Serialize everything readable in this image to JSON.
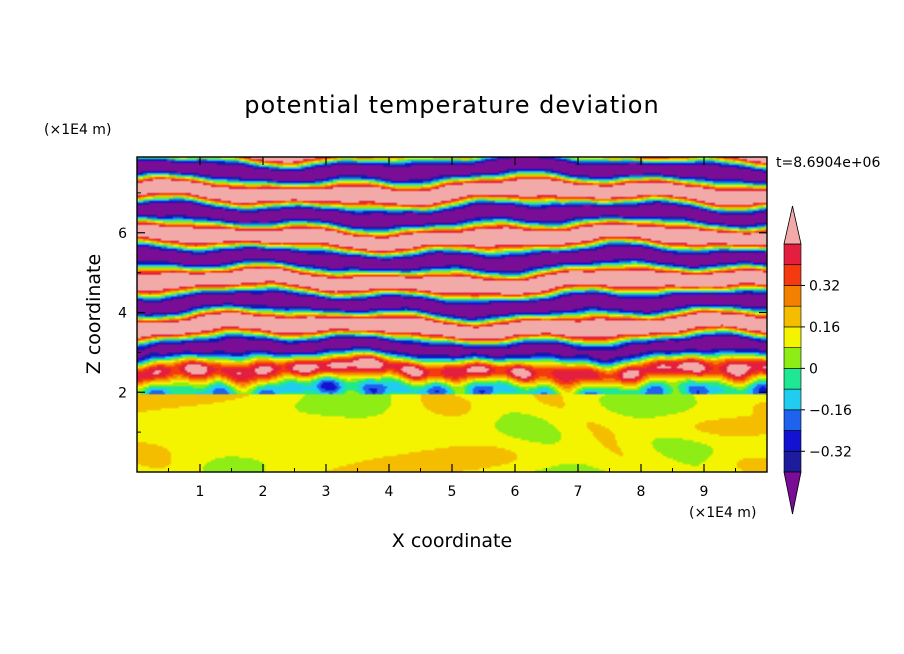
{
  "chart_data": {
    "type": "heatmap",
    "title": "potential temperature deviation",
    "xlabel": "X coordinate",
    "ylabel": "Z coordinate",
    "x_unit": "(×1E4 m)",
    "y_unit": "(×1E4 m)",
    "time_label": "t=8.6904e+06",
    "xlim": [
      0,
      10
    ],
    "ylim": [
      0,
      7.9
    ],
    "x_ticks": [
      "1",
      "2",
      "3",
      "4",
      "5",
      "6",
      "7",
      "8",
      "9"
    ],
    "y_ticks": [
      "2",
      "4",
      "6"
    ],
    "colorbar": {
      "levels": [
        -0.48,
        -0.4,
        -0.32,
        -0.24,
        -0.16,
        -0.08,
        0,
        0.08,
        0.16,
        0.24,
        0.32,
        0.4,
        0.48
      ],
      "tick_labels": [
        "−0.32",
        "−0.16",
        "0",
        "0.16",
        "0.32"
      ],
      "tick_values": [
        -0.32,
        -0.16,
        0,
        0.16,
        0.32
      ],
      "colors": [
        "#7a0d96",
        "#1c1c9c",
        "#1212d0",
        "#1e62ee",
        "#21cdef",
        "#1ee894",
        "#8ded14",
        "#f4f400",
        "#f4bd00",
        "#f48000",
        "#f43a0e",
        "#e31e3e",
        "#f2aaa8"
      ],
      "extend": "both"
    },
    "structure": "Lower layer (z below ~1.9) mostly slightly positive (0 to 0.08) with patches near zero; above z ~2 alternating horizontal stratified bands of strong negative (purple) and strong positive (pink) values with turbulent transition zones"
  }
}
